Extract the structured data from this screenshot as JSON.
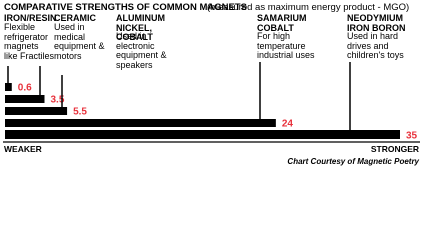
{
  "chart_data": {
    "type": "bar",
    "orientation": "horizontal",
    "title": "COMPARATIVE STRENGTHS OF COMMON MAGNETS",
    "subtitle": "(measured as maximum energy product - MGO)",
    "categories": [
      "IRON/RESIN",
      "CERAMIC",
      "ALUMINUM NICKEL, COBALT",
      "SAMARIUM COBALT",
      "NEODYMIUM IRON BORON"
    ],
    "descriptions": [
      "Flexible refrigerator magnets like Fractiles",
      "Used in medical equipment & motors",
      "Used in electronic equipment & speakers",
      "For high temperature industrial uses",
      "Used in hard drives and children's toys"
    ],
    "values": [
      0.6,
      3.5,
      5.5,
      24,
      35
    ],
    "color": "#000000",
    "value_label_color": "#e8323c",
    "xlim": [
      0,
      35
    ],
    "x_label_left": "WEAKER",
    "x_label_right": "STRONGER",
    "credit": "Chart Courtesy of Magnetic Poetry"
  }
}
